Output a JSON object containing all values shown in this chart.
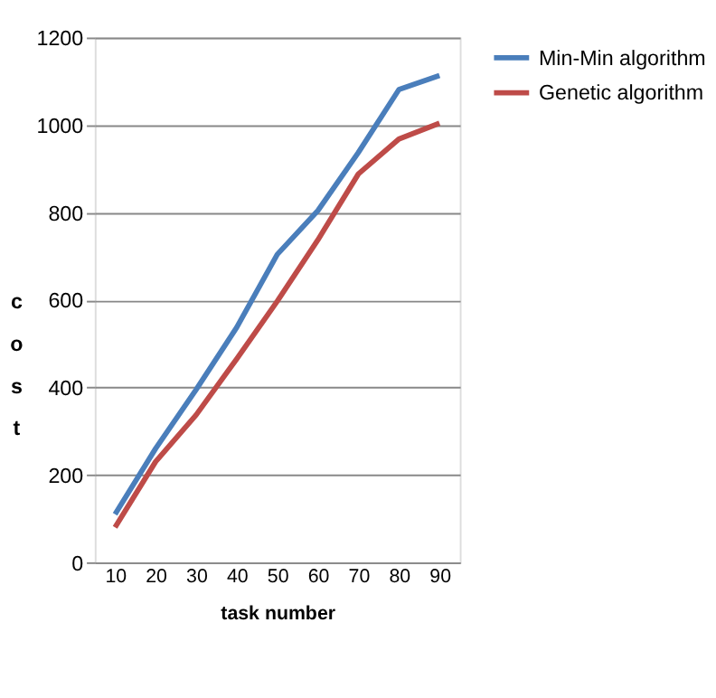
{
  "chart_data": {
    "type": "line",
    "xlabel": "task number",
    "ylabel": "cost",
    "categories": [
      "10",
      "20",
      "30",
      "40",
      "50",
      "60",
      "70",
      "80",
      "90"
    ],
    "series": [
      {
        "name": "Min-Min algorithm",
        "color": "#4a7ebb",
        "values": [
          110,
          260,
          395,
          537,
          704,
          804,
          937,
          1081,
          1113
        ]
      },
      {
        "name": "Genetic algorithm",
        "color": "#be4b48",
        "values": [
          80,
          230,
          337,
          465,
          597,
          737,
          888,
          968,
          1004
        ]
      }
    ],
    "ylim": [
      0,
      1200
    ],
    "yticks": [
      0,
      200,
      400,
      600,
      800,
      1000,
      1200
    ],
    "grid": "y",
    "legend": "right",
    "marker": "none",
    "line_style": "solid"
  }
}
